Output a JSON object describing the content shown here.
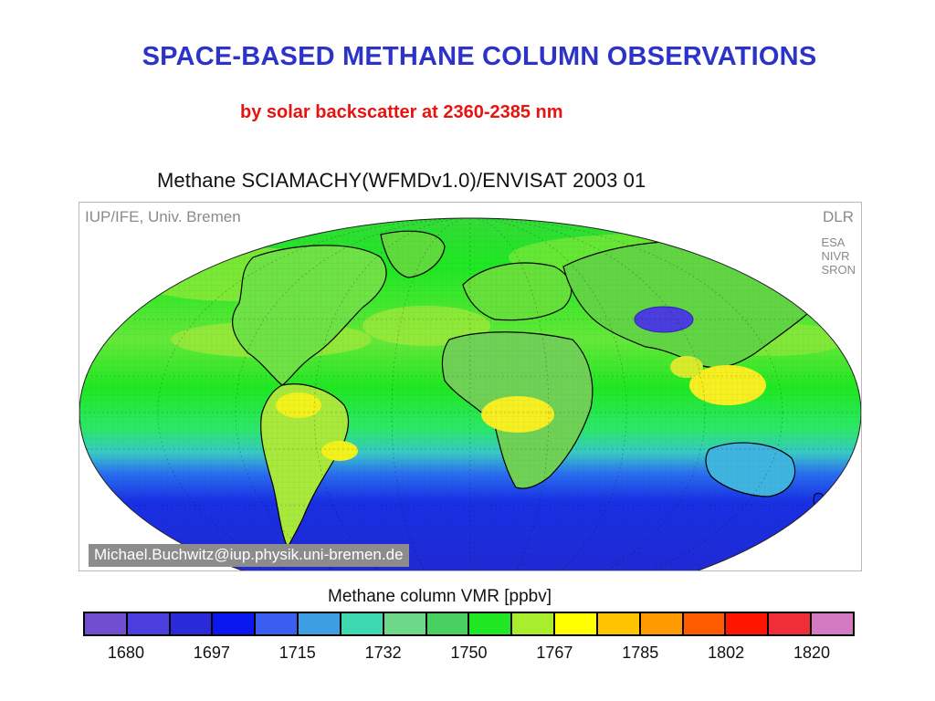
{
  "slide": {
    "title": "SPACE-BASED METHANE COLUMN OBSERVATIONS",
    "subtitle": "by solar backscatter at 2360-2385 nm"
  },
  "map": {
    "title": "Methane SCIAMACHY(WFMDv1.0)/ENVISAT 2003 01",
    "credit_left": "IUP/IFE, Univ. Bremen",
    "credit_right": "DLR",
    "partners": [
      "ESA",
      "NIVR",
      "SRON"
    ],
    "email": "Michael.Buchwitz@iup.physik.uni-bremen.de",
    "projection": "Mollweide",
    "colors": {
      "ocean_mid": "#5fdc3c",
      "ocean_low": "#1a2fe0",
      "land_high": "#e5ec2a",
      "hotspot": "#ffe81a"
    }
  },
  "legend": {
    "title": "Methane column VMR [ppbv]",
    "colors": [
      "#6f4fd0",
      "#4a3ede",
      "#2a2ad8",
      "#0a17ef",
      "#3a5ff0",
      "#3d9ee4",
      "#3ed8b0",
      "#6ed88a",
      "#48d060",
      "#1fe823",
      "#a9ee2c",
      "#ffff00",
      "#ffc300",
      "#ff9a00",
      "#ff5a00",
      "#ff1500",
      "#f02e3a",
      "#d47ac2"
    ],
    "tick_labels": [
      "1680",
      "1697",
      "1715",
      "1732",
      "1750",
      "1767",
      "1785",
      "1802",
      "1820"
    ]
  }
}
